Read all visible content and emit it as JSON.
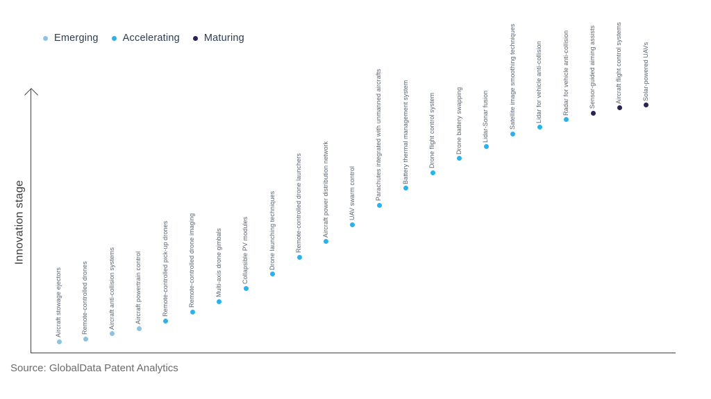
{
  "legend": {
    "items": [
      {
        "label": "Emerging",
        "color": "#8fc2e0"
      },
      {
        "label": "Accelerating",
        "color": "#2ab3ea"
      },
      {
        "label": "Maturing",
        "color": "#2a2353"
      }
    ]
  },
  "source": "Source: GlobalData Patent Analytics",
  "chart_data": {
    "type": "scatter",
    "title": "",
    "xlabel": "",
    "ylabel": "Innovation stage",
    "ylim": [
      0,
      100
    ],
    "grid": false,
    "legend_position": "top-left",
    "axis_style": "single-quadrant with upward arrow on y-axis, no ticks or gridlines; points ordered left-to-right by increasing innovation stage with rotated vertical labels above each point",
    "stage_colors": {
      "Emerging": "#8fc2e0",
      "Accelerating": "#2ab3ea",
      "Maturing": "#2a2353"
    },
    "points": [
      {
        "rank": 1,
        "label": "Aircraft stowage ejectors",
        "stage": "Emerging",
        "value": 4.5
      },
      {
        "rank": 2,
        "label": "Remote-controlled drones",
        "stage": "Emerging",
        "value": 5.5
      },
      {
        "rank": 3,
        "label": "Aircraft anti-collision systems",
        "stage": "Emerging",
        "value": 7.5
      },
      {
        "rank": 4,
        "label": "Aircraft powertrain control",
        "stage": "Emerging",
        "value": 9.5
      },
      {
        "rank": 5,
        "label": "Remote-controlled pick-up drones",
        "stage": "Accelerating",
        "value": 12.5
      },
      {
        "rank": 6,
        "label": "Remote-controlled drone imaging",
        "stage": "Accelerating",
        "value": 16
      },
      {
        "rank": 7,
        "label": "Multi-axis drone gimbals",
        "stage": "Accelerating",
        "value": 20
      },
      {
        "rank": 8,
        "label": "Collapsible PV modules",
        "stage": "Accelerating",
        "value": 25
      },
      {
        "rank": 9,
        "label": "Drone launching techniques",
        "stage": "Accelerating",
        "value": 30.5
      },
      {
        "rank": 10,
        "label": "Remote-controlled drone launchers",
        "stage": "Accelerating",
        "value": 37
      },
      {
        "rank": 11,
        "label": "Aircraft power distribution network",
        "stage": "Accelerating",
        "value": 43
      },
      {
        "rank": 12,
        "label": "UAV swarm control",
        "stage": "Accelerating",
        "value": 49.5
      },
      {
        "rank": 13,
        "label": "Parachutes integrated with unmanned aircrafts",
        "stage": "Accelerating",
        "value": 57
      },
      {
        "rank": 14,
        "label": "Battery thermal management system",
        "stage": "Accelerating",
        "value": 63.5
      },
      {
        "rank": 15,
        "label": "Drone flight control system",
        "stage": "Accelerating",
        "value": 69.5
      },
      {
        "rank": 16,
        "label": "Drone battery swapping",
        "stage": "Accelerating",
        "value": 75
      },
      {
        "rank": 17,
        "label": "Lidar-Sonar fusion",
        "stage": "Accelerating",
        "value": 79.5
      },
      {
        "rank": 18,
        "label": "Satellite image smoothing techniques",
        "stage": "Accelerating",
        "value": 84.5
      },
      {
        "rank": 19,
        "label": "Lidar for vehicle anti-collision",
        "stage": "Accelerating",
        "value": 87
      },
      {
        "rank": 20,
        "label": "Radar for vehicle anti-collision",
        "stage": "Accelerating",
        "value": 90
      },
      {
        "rank": 21,
        "label": "Sensor-guided aiming assists",
        "stage": "Maturing",
        "value": 92.5
      },
      {
        "rank": 22,
        "label": "Aircraft flight control systems",
        "stage": "Maturing",
        "value": 94.5
      },
      {
        "rank": 23,
        "label": "Solar-powered UAVs",
        "stage": "Maturing",
        "value": 95.5
      }
    ]
  }
}
